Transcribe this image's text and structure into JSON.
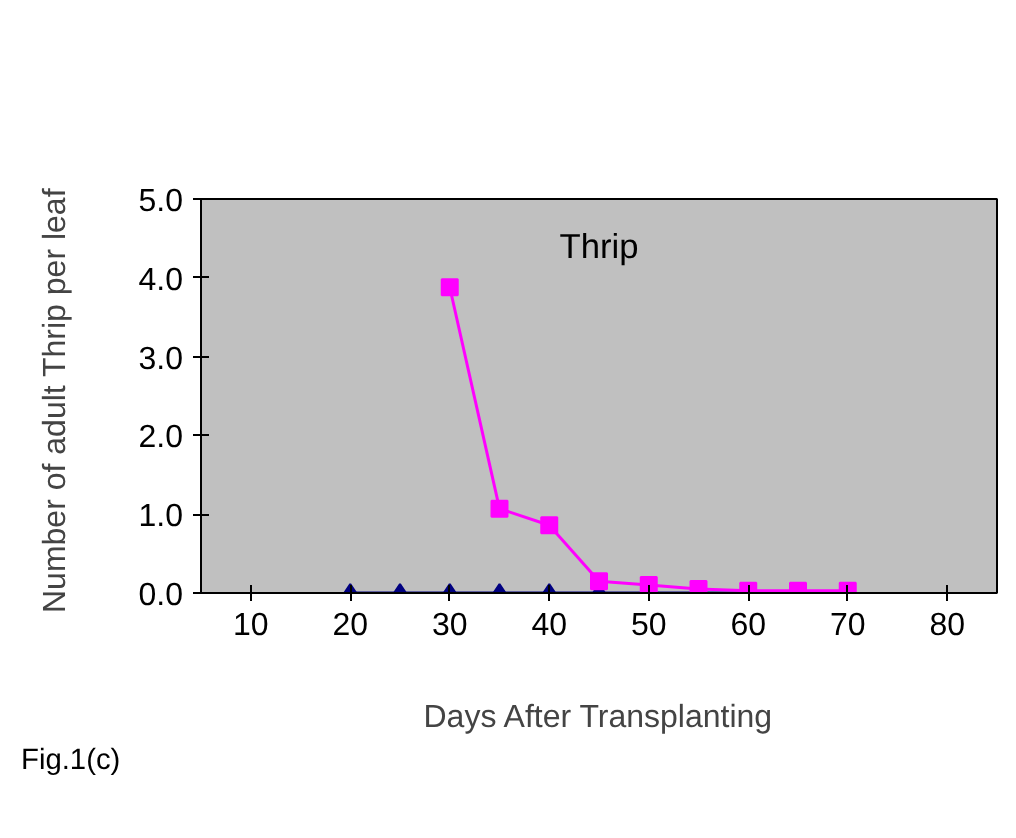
{
  "chart_data": {
    "type": "line",
    "title": "Thrip",
    "xlabel": "Days After Transplanting",
    "ylabel": "Number of adult Thrip  per leaf",
    "annotations": [
      "Fig.1(c)"
    ],
    "series": [
      {
        "color": "#000080",
        "marker": "diamond",
        "x": [
          20,
          25,
          30,
          35,
          40,
          45,
          50,
          55,
          60
        ],
        "values": [
          0,
          0,
          0,
          0,
          0,
          0,
          0,
          0,
          0
        ]
      },
      {
        "color": "#ff00ff",
        "marker": "square",
        "x": [
          30,
          35,
          40,
          45,
          50,
          55,
          60,
          65,
          70
        ],
        "values": [
          3.88,
          1.07,
          0.86,
          0.15,
          0.1,
          0.05,
          0.03,
          0.03,
          0.03
        ]
      }
    ],
    "xlim": [
      5,
      85
    ],
    "xticks": [
      10,
      20,
      30,
      40,
      50,
      60,
      70,
      80
    ],
    "ylim": [
      0,
      5
    ],
    "yticks": [
      {
        "value": 0,
        "label": "0.0"
      },
      {
        "value": 1,
        "label": "1.0"
      },
      {
        "value": 2,
        "label": "2.0"
      },
      {
        "value": 3,
        "label": "3.0"
      },
      {
        "value": 4,
        "label": "4.0"
      },
      {
        "value": 5,
        "label": "5.0"
      }
    ],
    "grid": false,
    "line_style": "solid"
  }
}
